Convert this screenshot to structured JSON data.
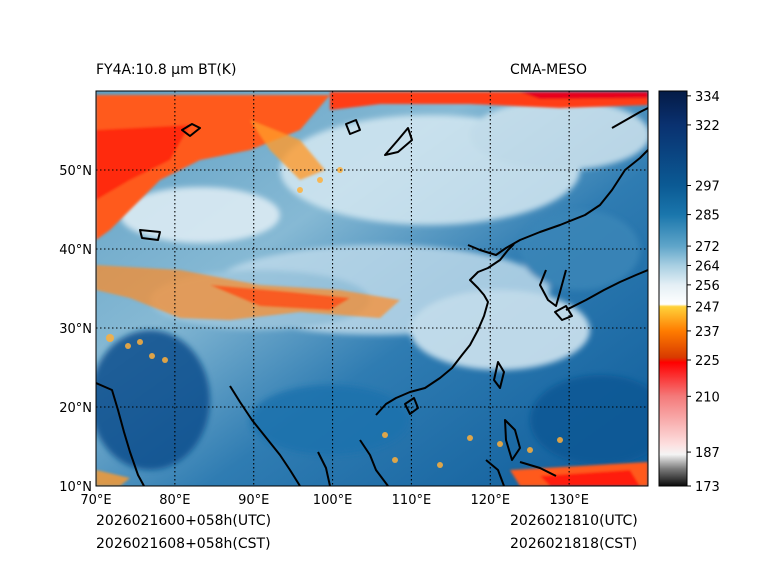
{
  "header": {
    "product_title": "FY4A:10.8 µm BT(K)",
    "model_name": "CMA-MESO"
  },
  "footer": {
    "init_utc": "2026021600+058h(UTC)",
    "init_cst": "2026021608+058h(CST)",
    "valid_utc": "2026021810(UTC)",
    "valid_cst": "2026021818(CST)"
  },
  "map": {
    "lon_range": [
      70,
      140
    ],
    "lat_range": [
      10,
      60
    ],
    "lon_ticks": [
      {
        "value": 70,
        "label": "70°E"
      },
      {
        "value": 80,
        "label": "80°E"
      },
      {
        "value": 90,
        "label": "90°E"
      },
      {
        "value": 100,
        "label": "100°E"
      },
      {
        "value": 110,
        "label": "110°E"
      },
      {
        "value": 120,
        "label": "120°E"
      },
      {
        "value": 130,
        "label": "130°E"
      }
    ],
    "lat_ticks": [
      {
        "value": 10,
        "label": "10°N"
      },
      {
        "value": 20,
        "label": "20°N"
      },
      {
        "value": 30,
        "label": "30°N"
      },
      {
        "value": 40,
        "label": "40°N"
      },
      {
        "value": 50,
        "label": "50°N"
      }
    ],
    "gridline_style": "dotted",
    "coastline_color": "#000000"
  },
  "colorbar": {
    "unit": "K",
    "range": [
      173,
      336
    ],
    "tick_labels": [
      "334",
      "322",
      "297",
      "285",
      "272",
      "264",
      "256",
      "247",
      "237",
      "225",
      "210",
      "187",
      "173"
    ],
    "tick_values": [
      334,
      322,
      297,
      285,
      272,
      264,
      256,
      247,
      237,
      225,
      210,
      187,
      173
    ],
    "color_stops": [
      {
        "value": 173,
        "color": "#0a0a0a"
      },
      {
        "value": 180,
        "color": "#7a7a7a"
      },
      {
        "value": 186,
        "color": "#f4f4f4"
      },
      {
        "value": 190,
        "color": "#fde0e0"
      },
      {
        "value": 210,
        "color": "#f47a7a"
      },
      {
        "value": 224,
        "color": "#ff0000"
      },
      {
        "value": 226,
        "color": "#d83a00"
      },
      {
        "value": 237,
        "color": "#ff7c00"
      },
      {
        "value": 247,
        "color": "#ffd23a"
      },
      {
        "value": 248,
        "color": "#ffffff"
      },
      {
        "value": 256,
        "color": "#e4eff5"
      },
      {
        "value": 264,
        "color": "#a8cfe2"
      },
      {
        "value": 272,
        "color": "#5fa5c9"
      },
      {
        "value": 285,
        "color": "#1a76ac"
      },
      {
        "value": 297,
        "color": "#0b5a94"
      },
      {
        "value": 322,
        "color": "#0a3170"
      },
      {
        "value": 336,
        "color": "#041b46"
      }
    ]
  }
}
